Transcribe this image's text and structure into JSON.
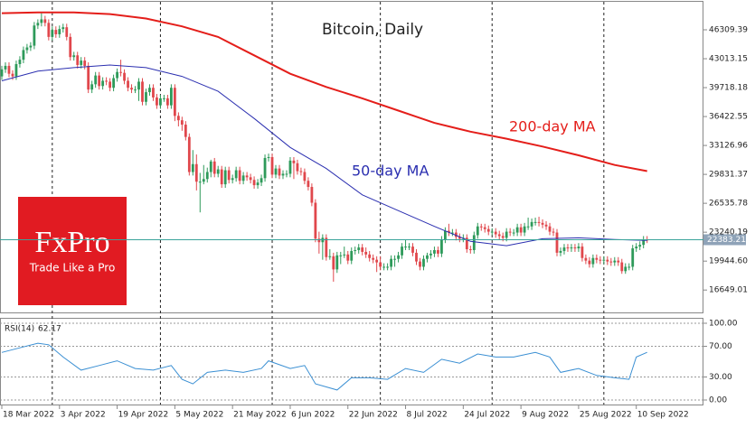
{
  "chart_data": [
    {
      "type": "candlestick",
      "title": "Bitcoin, Daily",
      "categories": [
        "18 Mar 2022",
        null,
        null,
        null,
        null,
        null,
        null,
        null,
        null,
        null,
        null,
        null,
        null,
        null,
        null,
        null,
        "3 Apr 2022",
        null,
        null,
        null,
        null,
        null,
        null,
        null,
        null,
        null,
        null,
        null,
        null,
        null,
        null,
        null,
        "19 Apr 2022",
        null,
        null,
        null,
        null,
        null,
        null,
        null,
        null,
        null,
        null,
        null,
        null,
        null,
        null,
        null,
        "5 May 2022",
        null,
        null,
        null,
        null,
        null,
        null,
        null,
        null,
        null,
        null,
        null,
        null,
        null,
        null,
        null,
        "21 May 2022",
        null,
        null,
        null,
        null,
        null,
        null,
        null,
        null,
        null,
        null,
        null,
        null,
        null,
        null,
        null,
        "6 Jun 2022",
        null,
        null,
        null,
        null,
        null,
        null,
        null,
        null,
        null,
        null,
        null,
        null,
        null,
        null,
        null,
        "22 Jun 2022",
        null,
        null,
        null,
        null,
        null,
        null,
        null,
        null,
        null,
        null,
        null,
        null,
        null,
        null,
        null,
        "8 Jul 2022",
        null,
        null,
        null,
        null,
        null,
        null,
        null,
        null,
        null,
        null,
        null,
        null,
        null,
        null,
        null,
        "24 Jul 2022",
        null,
        null,
        null,
        null,
        null,
        null,
        null,
        null,
        null,
        null,
        null,
        null,
        null,
        null,
        null,
        "9 Aug 2022",
        null,
        null,
        null,
        null,
        null,
        null,
        null,
        null,
        null,
        null,
        null,
        null,
        null,
        null,
        null,
        "25 Aug 2022",
        null,
        null,
        null,
        null,
        null,
        null,
        null,
        null,
        null,
        null,
        null,
        null,
        null,
        null,
        null,
        "10 Sep 2022",
        null,
        null,
        null
      ],
      "open": [
        41000,
        41800,
        42200,
        41300,
        41000,
        42400,
        42900,
        44000,
        44300,
        44500,
        46800,
        47100,
        47500,
        47100,
        45500,
        46300,
        45800,
        46400,
        46600,
        45500,
        43200,
        43400,
        42300,
        42800,
        42200,
        39500,
        40100,
        41100,
        39900,
        40500,
        40400,
        39700,
        40800,
        41500,
        41400,
        40500,
        39700,
        39500,
        39500,
        40400,
        38100,
        39200,
        39700,
        38600,
        37700,
        38500,
        38500,
        37700,
        39700,
        36500,
        36000,
        35500,
        34100,
        30100,
        31000,
        29000,
        29000,
        29300,
        30100,
        31300,
        29900,
        30400,
        28700,
        30300,
        29200,
        29400,
        30300,
        29100,
        29700,
        29500,
        29200,
        28600,
        28900,
        29400,
        31700,
        31800,
        29800,
        30500,
        29700,
        29900,
        29900,
        31400,
        31100,
        30200,
        30100,
        29100,
        28400,
        26600,
        22500,
        22100,
        22600,
        20400,
        20500,
        19000,
        20600,
        20600,
        20700,
        20000,
        21100,
        21200,
        21500,
        21000,
        20700,
        20300,
        20100,
        19800,
        19300,
        19300,
        19300,
        20200,
        20200,
        20600,
        21600,
        21600,
        21600,
        20900,
        19900,
        19300,
        20200,
        20600,
        20800,
        21200,
        20800,
        22400,
        23400,
        23200,
        23200,
        22700,
        22500,
        22600,
        21300,
        21200,
        22900,
        23900,
        23800,
        23600,
        23300,
        23300,
        23000,
        22800,
        22600,
        23300,
        23200,
        23200,
        23800,
        23200,
        23900,
        23900,
        24400,
        24400,
        24300,
        24100,
        23900,
        23300,
        23200,
        20900,
        21100,
        21500,
        21400,
        21500,
        21400,
        21600,
        20300,
        20000,
        19600,
        20300,
        20100,
        20000,
        20100,
        19900,
        19800,
        20000,
        19800,
        18800,
        19300,
        19300,
        21400,
        21600,
        21800,
        22400
      ],
      "high": [
        42200,
        42600,
        42600,
        41700,
        42800,
        43300,
        44400,
        44700,
        44900,
        47200,
        47500,
        48200,
        47900,
        47500,
        46700,
        46700,
        46800,
        47000,
        47000,
        45900,
        43800,
        43800,
        43200,
        43200,
        42600,
        40500,
        41500,
        41500,
        40900,
        40900,
        40800,
        41200,
        41900,
        42900,
        41800,
        40900,
        40100,
        39900,
        40800,
        40800,
        39600,
        40100,
        40100,
        39000,
        38900,
        38900,
        38900,
        40100,
        40100,
        36900,
        36400,
        35900,
        34500,
        32600,
        32100,
        30000,
        30900,
        30600,
        31500,
        31700,
        30800,
        30800,
        30700,
        30700,
        29800,
        30700,
        30700,
        30100,
        30100,
        29900,
        29600,
        29300,
        29800,
        32100,
        32200,
        32200,
        30900,
        30900,
        30300,
        30300,
        31800,
        31800,
        31500,
        30600,
        30500,
        29500,
        28800,
        27000,
        23300,
        23000,
        23000,
        21300,
        20900,
        21000,
        21000,
        21600,
        21100,
        21500,
        21600,
        21900,
        21900,
        21500,
        21100,
        20700,
        20500,
        20500,
        19700,
        19700,
        20600,
        20600,
        21000,
        22000,
        22400,
        22000,
        22000,
        21300,
        20300,
        20600,
        20900,
        21200,
        21600,
        21600,
        22800,
        23800,
        24200,
        23600,
        23600,
        23100,
        23000,
        23000,
        21700,
        23300,
        24300,
        24200,
        24200,
        24000,
        23700,
        23700,
        23400,
        23200,
        23700,
        23700,
        23600,
        24200,
        24200,
        24300,
        24900,
        24800,
        24900,
        25000,
        24700,
        24500,
        24300,
        23700,
        23600,
        21500,
        21900,
        21900,
        21900,
        21900,
        22000,
        22000,
        20700,
        20400,
        20700,
        20700,
        20500,
        20500,
        20500,
        20300,
        20400,
        20400,
        20200,
        19700,
        19700,
        21800,
        22000,
        22200,
        22800,
        22800
      ],
      "low": [
        40600,
        41400,
        40900,
        40600,
        40600,
        42000,
        42500,
        43600,
        43900,
        44100,
        46400,
        46700,
        46700,
        45100,
        45100,
        45400,
        45400,
        46000,
        45100,
        42800,
        42800,
        41900,
        41900,
        41800,
        39100,
        39100,
        39700,
        39500,
        39500,
        40000,
        39300,
        39300,
        40400,
        41000,
        40100,
        39300,
        39100,
        39100,
        38200,
        37700,
        37700,
        38800,
        38200,
        37300,
        37300,
        38100,
        37300,
        37300,
        35900,
        35300,
        34800,
        33700,
        29700,
        29700,
        28000,
        25500,
        28700,
        28900,
        29500,
        29500,
        29500,
        28300,
        28300,
        28800,
        28800,
        29000,
        28700,
        28700,
        29100,
        28800,
        28200,
        28200,
        28500,
        29000,
        31300,
        29400,
        29400,
        29300,
        29300,
        29500,
        29500,
        29300,
        29800,
        29700,
        28700,
        28000,
        26200,
        22100,
        20800,
        20100,
        20000,
        20100,
        17600,
        18600,
        19600,
        20300,
        19600,
        19600,
        20700,
        20800,
        20600,
        20300,
        19900,
        19700,
        18700,
        18900,
        18900,
        18900,
        18900,
        19300,
        19800,
        20200,
        21200,
        21200,
        20500,
        19500,
        18900,
        18900,
        19800,
        20200,
        20400,
        20400,
        20400,
        22000,
        22800,
        22800,
        22300,
        22100,
        22100,
        20900,
        20800,
        20800,
        22500,
        23400,
        23200,
        22900,
        22900,
        22600,
        22400,
        22200,
        22200,
        22800,
        22800,
        22800,
        22800,
        22800,
        23500,
        23500,
        24000,
        23900,
        23700,
        23500,
        22900,
        22800,
        20500,
        20500,
        20700,
        21000,
        21000,
        21000,
        21000,
        19900,
        19600,
        19200,
        19200,
        19700,
        19600,
        19600,
        19500,
        19400,
        19400,
        19400,
        18500,
        18500,
        18900,
        18900,
        21000,
        21200,
        21400,
        22000
      ],
      "close": [
        41800,
        42200,
        41300,
        41000,
        42400,
        42900,
        44000,
        44300,
        44500,
        46800,
        47100,
        47500,
        47100,
        45500,
        46300,
        45800,
        46400,
        46600,
        45500,
        43200,
        43400,
        42300,
        42800,
        42200,
        39500,
        40100,
        41100,
        39900,
        40500,
        40400,
        39700,
        40800,
        41500,
        41400,
        40500,
        39700,
        39500,
        39500,
        40400,
        38100,
        39200,
        39700,
        38600,
        37700,
        38500,
        38500,
        37700,
        39700,
        36500,
        36000,
        35500,
        34100,
        30100,
        31000,
        29000,
        29000,
        29300,
        30100,
        31300,
        29900,
        30400,
        28700,
        30300,
        29200,
        29400,
        30300,
        29100,
        29700,
        29500,
        29200,
        28600,
        28900,
        29400,
        31700,
        31800,
        29800,
        30500,
        29700,
        29900,
        29900,
        31400,
        31100,
        30200,
        30100,
        29100,
        28400,
        26600,
        22500,
        22100,
        22600,
        20400,
        20500,
        19000,
        20600,
        20600,
        20700,
        20000,
        21100,
        21200,
        21500,
        21000,
        20700,
        20300,
        20100,
        19800,
        19300,
        19300,
        19300,
        20200,
        20200,
        20600,
        21600,
        21600,
        21600,
        20900,
        19900,
        19300,
        20200,
        20600,
        20800,
        21200,
        20800,
        22400,
        23400,
        23200,
        23200,
        22700,
        22500,
        22600,
        21300,
        21200,
        22900,
        23900,
        23800,
        23600,
        23300,
        23300,
        23000,
        22800,
        22600,
        23300,
        23200,
        23200,
        23800,
        23200,
        23900,
        23900,
        24400,
        24400,
        24300,
        24100,
        23900,
        23300,
        23200,
        20900,
        21100,
        21500,
        21400,
        21500,
        21400,
        21600,
        20300,
        20000,
        19600,
        20300,
        20100,
        20000,
        20100,
        19900,
        19800,
        20000,
        19800,
        18800,
        19300,
        19300,
        21400,
        21600,
        21800,
        22400,
        22383.21
      ],
      "up_color": "#2e9a5a",
      "down_color": "#e0474c",
      "price_line_color": "#3aa39a",
      "price_tag_color": "#8fa3b8",
      "ylim": [
        14200,
        49500
      ],
      "yticks": [
        46309.39,
        43013.15,
        39718.18,
        36422.55,
        33126.96,
        29831.37,
        26535.78,
        23240.19,
        {
          "value": 19944.6,
          "label": "19944.60"
        },
        16649.01
      ],
      "period_separators": [
        14,
        44,
        75,
        105,
        136,
        167
      ],
      "series": [
        {
          "name": "200-day MA",
          "color": "#e41e1a",
          "x": [
            0,
            10,
            20,
            30,
            40,
            50,
            60,
            70,
            80,
            90,
            100,
            110,
            120,
            130,
            140,
            150,
            160,
            170,
            179
          ],
          "values": [
            48200,
            48300,
            48300,
            48100,
            47600,
            46700,
            45500,
            43400,
            41300,
            39800,
            38500,
            37100,
            35700,
            34700,
            33900,
            33000,
            32000,
            30900,
            30200
          ]
        },
        {
          "name": "50-day MA",
          "color": "#2b2fb0",
          "x": [
            0,
            10,
            20,
            30,
            40,
            50,
            60,
            70,
            80,
            90,
            100,
            110,
            120,
            130,
            140,
            150,
            160,
            170,
            179
          ],
          "values": [
            40500,
            41600,
            42000,
            42300,
            42000,
            41000,
            39300,
            36200,
            32900,
            30500,
            27500,
            25700,
            23900,
            22200,
            21700,
            22500,
            22600,
            22400,
            22300
          ]
        }
      ],
      "logo": {
        "brand": "FxPro",
        "tagline": "Trade Like a Pro",
        "color": "#e11b22"
      }
    },
    {
      "type": "line",
      "title": "RSI(14)",
      "series": [
        {
          "color": "#3a8fd3",
          "x": [
            0,
            5,
            10,
            13,
            17,
            22,
            27,
            32,
            37,
            42,
            47,
            50,
            53,
            57,
            62,
            67,
            72,
            74,
            80,
            84,
            87,
            93,
            97,
            102,
            107,
            112,
            117,
            122,
            127,
            132,
            137,
            142,
            148,
            152,
            155,
            160,
            165,
            170,
            174,
            176,
            179
          ],
          "values": [
            62,
            68,
            74,
            72,
            56,
            39,
            45,
            51,
            41,
            39,
            45,
            27,
            21,
            36,
            39,
            36,
            41,
            51,
            41,
            45,
            21,
            13,
            29,
            29,
            27,
            41,
            36,
            53,
            48,
            60,
            56,
            56,
            62,
            56,
            36,
            41,
            32,
            29,
            27,
            56,
            62.17
          ]
        }
      ],
      "ylim": [
        0,
        100
      ],
      "yticks": [
        {
          "value": 100,
          "label": "100.00"
        },
        {
          "value": 70,
          "label": "70.00"
        },
        {
          "value": 30,
          "label": "30.00"
        },
        {
          "value": 0,
          "label": "0.00"
        }
      ]
    }
  ]
}
